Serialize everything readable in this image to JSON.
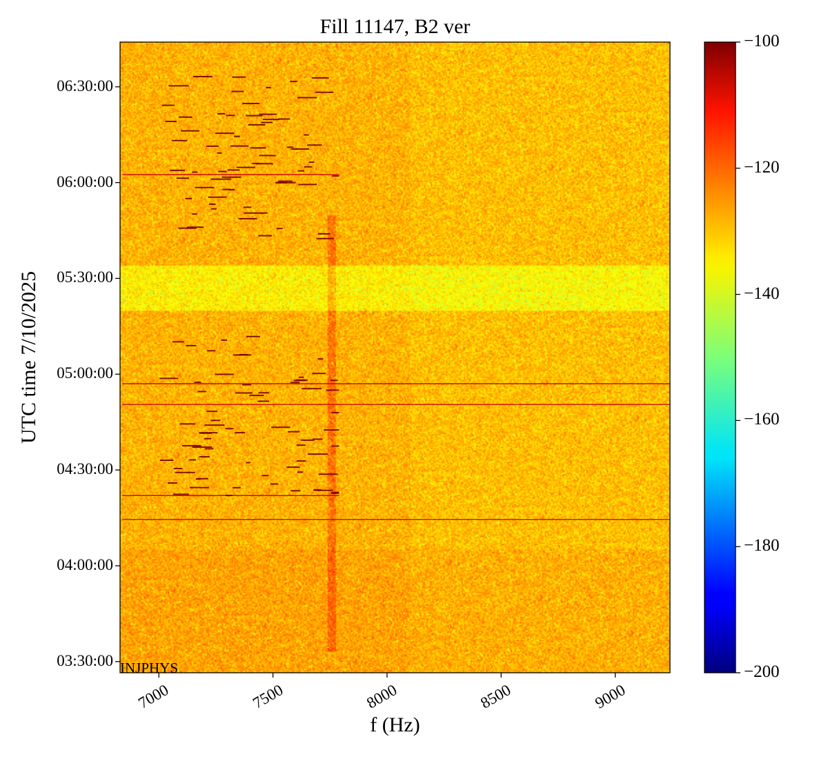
{
  "chart_data": {
    "type": "heatmap",
    "title": "Fill 11147, B2 ver",
    "xlabel": "f (Hz)",
    "ylabel": "UTC time 7/10/2025",
    "xlim": [
      6830,
      9240
    ],
    "x_ticks": [
      "7000",
      "7500",
      "8000",
      "8500",
      "9000"
    ],
    "x_tick_values": [
      7000,
      7500,
      8000,
      8500,
      9000
    ],
    "y_ticks": [
      "03:30:00",
      "04:00:00",
      "04:30:00",
      "05:00:00",
      "05:30:00",
      "06:00:00",
      "06:30:00"
    ],
    "y_tick_minutes": [
      210,
      240,
      270,
      300,
      330,
      360,
      390
    ],
    "ylim_minutes": [
      206.5,
      404
    ],
    "colorbar": {
      "colormap": "jet",
      "range": [
        -200,
        -100
      ],
      "ticks": [
        "−100",
        "−120",
        "−140",
        "−160",
        "−180",
        "−200"
      ],
      "tick_values": [
        -100,
        -120,
        -140,
        -160,
        -180,
        -200
      ]
    },
    "background_level_db": -130,
    "quiet_band_minutes": [
      320,
      334
    ],
    "vertical_line_hz": 7760,
    "horizontal_lines": [
      {
        "time_min": 362.5,
        "f_start": 6840,
        "f_end": 7790
      },
      {
        "time_min": 297,
        "f_start": 6840,
        "f_end": 9240
      },
      {
        "time_min": 290.5,
        "f_start": 6840,
        "f_end": 9240
      },
      {
        "time_min": 262,
        "f_start": 6840,
        "f_end": 7790
      },
      {
        "time_min": 254.5,
        "f_start": 6840,
        "f_end": 9240
      }
    ],
    "annotation": "INJPHYS"
  }
}
